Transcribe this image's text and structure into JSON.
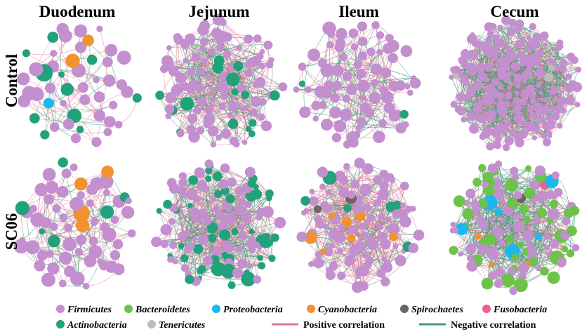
{
  "columns": [
    "Duodenum",
    "Jejunum",
    "Ileum",
    "Cecum"
  ],
  "rows": [
    "Control",
    "SC06"
  ],
  "phyla": [
    {
      "name": "Firmicutes",
      "color": "#c48fcf"
    },
    {
      "name": "Bacteroidetes",
      "color": "#6dc24b"
    },
    {
      "name": "Proteobacteria",
      "color": "#19b8ee"
    },
    {
      "name": "Cyanobacteria",
      "color": "#f2922e"
    },
    {
      "name": "Spirochaetes",
      "color": "#6f6363"
    },
    {
      "name": "Fusobacteria",
      "color": "#ee5f8c"
    },
    {
      "name": "Actinobacteria",
      "color": "#22a27a"
    },
    {
      "name": "Tenericutes",
      "color": "#bdbdbd"
    }
  ],
  "edges": [
    {
      "name": "Positive correlation",
      "color": "#e07a98"
    },
    {
      "name": "Negative correlation",
      "color": "#3e9a7a"
    }
  ],
  "networks": [
    {
      "row": "Control",
      "column": "Duodenum",
      "nodes": 48,
      "edges": 70,
      "composition": {
        "Firmicutes": 0.72,
        "Actinobacteria": 0.22,
        "Cyanobacteria": 0.04,
        "Proteobacteria": 0.02
      },
      "positive_share": 0.6
    },
    {
      "row": "Control",
      "column": "Jejunum",
      "nodes": 105,
      "edges": 380,
      "composition": {
        "Firmicutes": 0.85,
        "Actinobacteria": 0.15
      },
      "positive_share": 0.55
    },
    {
      "row": "Control",
      "column": "Ileum",
      "nodes": 78,
      "edges": 200,
      "composition": {
        "Firmicutes": 0.97,
        "Actinobacteria": 0.03
      },
      "positive_share": 0.55
    },
    {
      "row": "Control",
      "column": "Cecum",
      "nodes": 200,
      "edges": 900,
      "composition": {
        "Firmicutes": 0.985,
        "Tenericutes": 0.015
      },
      "positive_share": 0.45
    },
    {
      "row": "SC06",
      "column": "Duodenum",
      "nodes": 65,
      "edges": 140,
      "composition": {
        "Firmicutes": 0.85,
        "Actinobacteria": 0.09,
        "Cyanobacteria": 0.06
      },
      "positive_share": 0.5
    },
    {
      "row": "SC06",
      "column": "Jejunum",
      "nodes": 120,
      "edges": 480,
      "composition": {
        "Firmicutes": 0.62,
        "Actinobacteria": 0.38
      },
      "positive_share": 0.55
    },
    {
      "row": "SC06",
      "column": "Ileum",
      "nodes": 110,
      "edges": 420,
      "composition": {
        "Firmicutes": 0.87,
        "Cyanobacteria": 0.06,
        "Actinobacteria": 0.05,
        "Spirochaetes": 0.02
      },
      "positive_share": 0.7
    },
    {
      "row": "SC06",
      "column": "Cecum",
      "nodes": 125,
      "edges": 520,
      "composition": {
        "Firmicutes": 0.56,
        "Bacteroidetes": 0.35,
        "Proteobacteria": 0.05,
        "Cyanobacteria": 0.02,
        "Spirochaetes": 0.01,
        "Fusobacteria": 0.01
      },
      "positive_share": 0.4
    }
  ]
}
